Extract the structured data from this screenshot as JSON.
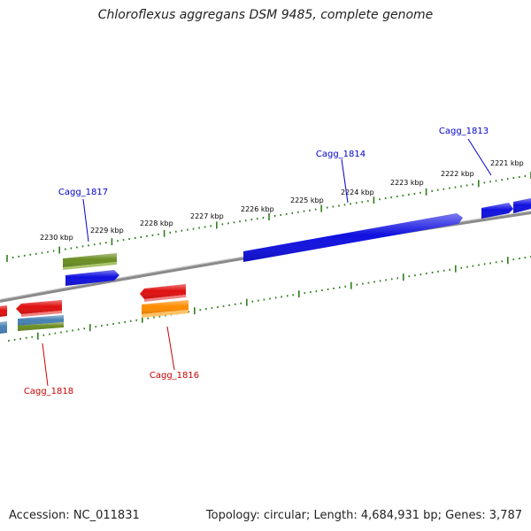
{
  "title": "Chloroflexus aggregans DSM 9485, complete genome",
  "footer": {
    "accession": "Accession: NC_011831",
    "topology": "Topology: circular; Length: 4,684,931 bp; Genes: 3,787"
  },
  "colors": {
    "forward_label": "#0000cc",
    "reverse_label": "#cc0000",
    "tick": "#2e7d1c",
    "backbone": "#888888"
  },
  "scale_labels": [
    "2230 kbp",
    "2229 kbp",
    "2228 kbp",
    "2227 kbp",
    "2226 kbp",
    "2225 kbp",
    "2224 kbp",
    "2223 kbp",
    "2222 kbp",
    "2221 kbp"
  ],
  "gene_labels": [
    {
      "text": "Cagg_1817",
      "strand": "forward"
    },
    {
      "text": "Cagg_1814",
      "strand": "forward"
    },
    {
      "text": "Cagg_1813",
      "strand": "forward"
    },
    {
      "text": "Cagg_1818",
      "strand": "reverse"
    },
    {
      "text": "Cagg_1816",
      "strand": "reverse"
    }
  ],
  "features": [
    {
      "name": "cagg-1817-gene",
      "color": "#6b8e23",
      "strand": "forward"
    },
    {
      "name": "blue-gene-a",
      "color": "#1010e0",
      "strand": "forward"
    },
    {
      "name": "cagg-1814-gene",
      "color": "#1010e0",
      "strand": "forward"
    },
    {
      "name": "cagg-1813-gene",
      "color": "#1010e0",
      "strand": "forward"
    },
    {
      "name": "blue-gene-edge",
      "color": "#1010e0",
      "strand": "forward"
    },
    {
      "name": "red-gene-edge",
      "color": "#e01010",
      "strand": "reverse"
    },
    {
      "name": "red-gene-b",
      "color": "#e01010",
      "strand": "reverse"
    },
    {
      "name": "cagg-1818-gene",
      "color": "#4682b4",
      "strand": "reverse"
    },
    {
      "name": "olive-gene-c",
      "color": "#6b8e23",
      "strand": "reverse"
    },
    {
      "name": "steelblue-gene-edge",
      "color": "#4682b4",
      "strand": "reverse"
    },
    {
      "name": "red-gene-d",
      "color": "#e01010",
      "strand": "reverse"
    },
    {
      "name": "cagg-1816-gene",
      "color": "#ff8c00",
      "strand": "reverse"
    }
  ]
}
